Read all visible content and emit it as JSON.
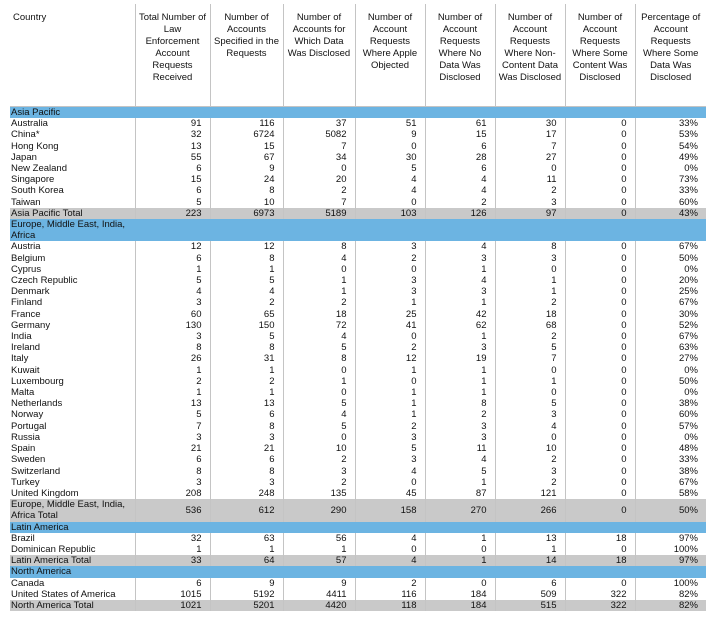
{
  "table": {
    "headers": [
      "Country",
      "Total Number of Law Enforcement Account Requests Received",
      "Number of Accounts Specified in the Requests",
      "Number of Accounts for Which Data Was Disclosed",
      "Number of Account Requests Where Apple Objected",
      "Number of Account Requests Where No Data Was Disclosed",
      "Number of Account Requests Where Non-Content Data Was Disclosed",
      "Number of Account Requests Where Some Content Was Disclosed",
      "Percentage of Account Requests Where Some Data Was Disclosed"
    ],
    "sections": [
      {
        "title": "Asia Pacific",
        "rows": [
          [
            "Australia",
            91,
            116,
            37,
            51,
            61,
            30,
            0,
            "33%"
          ],
          [
            "China*",
            32,
            6724,
            5082,
            9,
            15,
            17,
            0,
            "53%"
          ],
          [
            "Hong Kong",
            13,
            15,
            7,
            0,
            6,
            7,
            0,
            "54%"
          ],
          [
            "Japan",
            55,
            67,
            34,
            30,
            28,
            27,
            0,
            "49%"
          ],
          [
            "New Zealand",
            6,
            9,
            0,
            5,
            6,
            0,
            0,
            "0%"
          ],
          [
            "Singapore",
            15,
            24,
            20,
            4,
            4,
            11,
            0,
            "73%"
          ],
          [
            "South Korea",
            6,
            8,
            2,
            4,
            4,
            2,
            0,
            "33%"
          ],
          [
            "Taiwan",
            5,
            10,
            7,
            0,
            2,
            3,
            0,
            "60%"
          ]
        ],
        "total": [
          "Asia Pacific Total",
          223,
          6973,
          5189,
          103,
          126,
          97,
          0,
          "43%"
        ]
      },
      {
        "title": "Europe, Middle East, India, Africa",
        "rows": [
          [
            "Austria",
            12,
            12,
            8,
            3,
            4,
            8,
            0,
            "67%"
          ],
          [
            "Belgium",
            6,
            8,
            4,
            2,
            3,
            3,
            0,
            "50%"
          ],
          [
            "Cyprus",
            1,
            1,
            0,
            0,
            1,
            0,
            0,
            "0%"
          ],
          [
            "Czech Republic",
            5,
            5,
            1,
            3,
            4,
            1,
            0,
            "20%"
          ],
          [
            "Denmark",
            4,
            4,
            1,
            3,
            3,
            1,
            0,
            "25%"
          ],
          [
            "Finland",
            3,
            2,
            2,
            1,
            1,
            2,
            0,
            "67%"
          ],
          [
            "France",
            60,
            65,
            18,
            25,
            42,
            18,
            0,
            "30%"
          ],
          [
            "Germany",
            130,
            150,
            72,
            41,
            62,
            68,
            0,
            "52%"
          ],
          [
            "India",
            3,
            5,
            4,
            0,
            1,
            2,
            0,
            "67%"
          ],
          [
            "Ireland",
            8,
            8,
            5,
            2,
            3,
            5,
            0,
            "63%"
          ],
          [
            "Italy",
            26,
            31,
            8,
            12,
            19,
            7,
            0,
            "27%"
          ],
          [
            "Kuwait",
            1,
            1,
            0,
            1,
            1,
            0,
            0,
            "0%"
          ],
          [
            "Luxembourg",
            2,
            2,
            1,
            0,
            1,
            1,
            0,
            "50%"
          ],
          [
            "Malta",
            1,
            1,
            0,
            1,
            1,
            0,
            0,
            "0%"
          ],
          [
            "Netherlands",
            13,
            13,
            5,
            1,
            8,
            5,
            0,
            "38%"
          ],
          [
            "Norway",
            5,
            6,
            4,
            1,
            2,
            3,
            0,
            "60%"
          ],
          [
            "Portugal",
            7,
            8,
            5,
            2,
            3,
            4,
            0,
            "57%"
          ],
          [
            "Russia",
            3,
            3,
            0,
            3,
            3,
            0,
            0,
            "0%"
          ],
          [
            "Spain",
            21,
            21,
            10,
            5,
            11,
            10,
            0,
            "48%"
          ],
          [
            "Sweden",
            6,
            6,
            2,
            3,
            4,
            2,
            0,
            "33%"
          ],
          [
            "Switzerland",
            8,
            8,
            3,
            4,
            5,
            3,
            0,
            "38%"
          ],
          [
            "Turkey",
            3,
            3,
            2,
            0,
            1,
            2,
            0,
            "67%"
          ],
          [
            "United Kingdom",
            208,
            248,
            135,
            45,
            87,
            121,
            0,
            "58%"
          ]
        ],
        "total": [
          "Europe, Middle East, India, Africa Total",
          536,
          612,
          290,
          158,
          270,
          266,
          0,
          "50%"
        ]
      },
      {
        "title": "Latin America",
        "rows": [
          [
            "Brazil",
            32,
            63,
            56,
            4,
            1,
            13,
            18,
            "97%"
          ],
          [
            "Dominican Republic",
            1,
            1,
            1,
            0,
            0,
            1,
            0,
            "100%"
          ]
        ],
        "total": [
          "Latin America Total",
          33,
          64,
          57,
          4,
          1,
          14,
          18,
          "97%"
        ]
      },
      {
        "title": "North America",
        "rows": [
          [
            "Canada",
            6,
            9,
            9,
            2,
            0,
            6,
            0,
            "100%"
          ],
          [
            "United States of America",
            1015,
            5192,
            4411,
            116,
            184,
            509,
            322,
            "82%"
          ]
        ],
        "total": [
          "North America Total",
          1021,
          5201,
          4420,
          118,
          184,
          515,
          322,
          "82%"
        ]
      }
    ]
  }
}
